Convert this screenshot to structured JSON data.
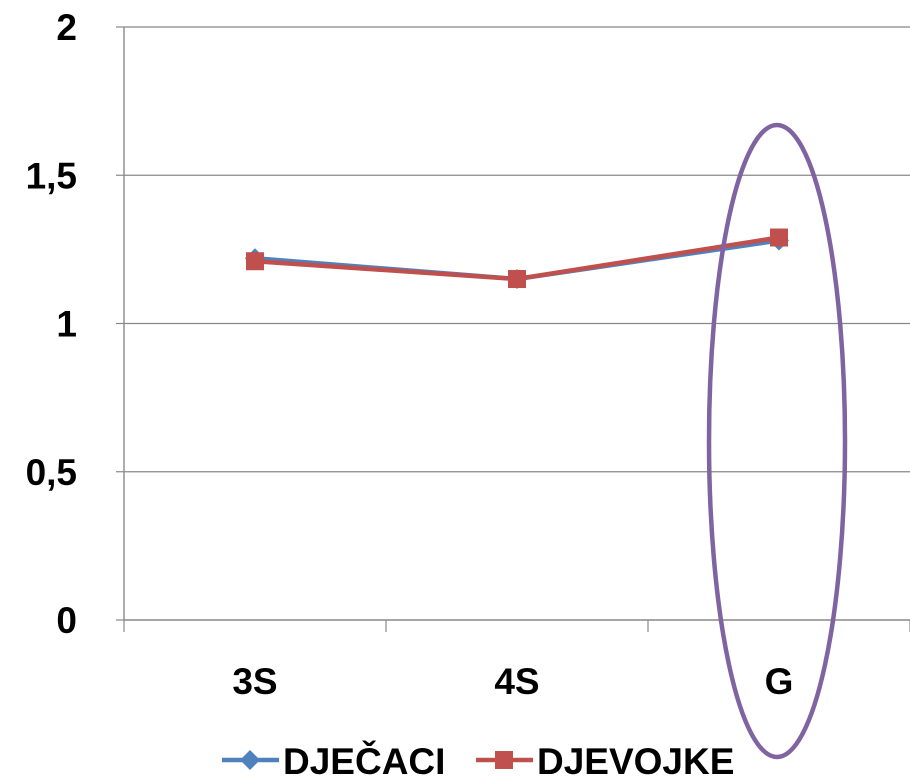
{
  "chart_data": {
    "type": "line",
    "categories": [
      "3S",
      "4S",
      "G"
    ],
    "series": [
      {
        "name": "DJEČACI",
        "values": [
          1.22,
          1.15,
          1.28
        ],
        "color": "#4F81BD",
        "marker": "diamond"
      },
      {
        "name": "DJEVOJKE",
        "values": [
          1.21,
          1.15,
          1.29
        ],
        "color": "#C0504D",
        "marker": "square"
      }
    ],
    "y_ticks": [
      "0",
      "0,5",
      "1",
      "1,5",
      "2"
    ],
    "y_tick_values": [
      0,
      0.5,
      1,
      1.5,
      2
    ],
    "ylim": [
      0,
      2
    ],
    "grid": true,
    "legend_position": "bottom",
    "highlight": {
      "category": "G",
      "shape": "ellipse",
      "color": "#8064A2"
    }
  }
}
